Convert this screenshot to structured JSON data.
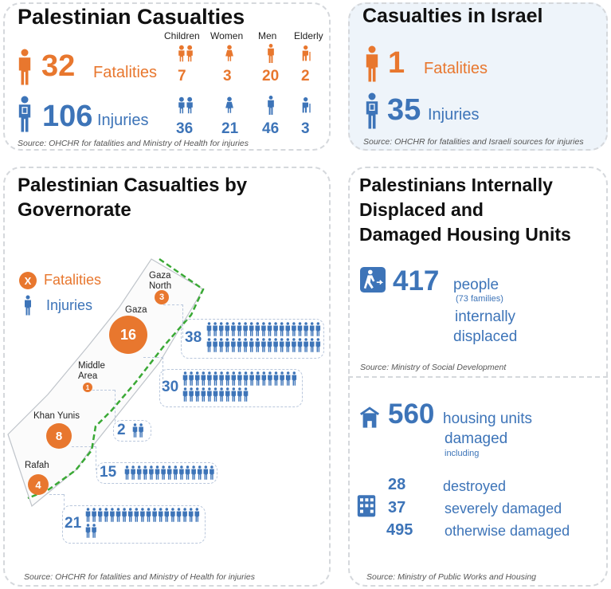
{
  "pal_cas": {
    "title": "Palestinian Casualties",
    "fatalities_value": "32",
    "fatalities_label": "Fatalities",
    "injuries_value": "106",
    "injuries_label": "Injuries",
    "headers": [
      "Children",
      "Women",
      "Men",
      "Elderly"
    ],
    "fatal_breakdown": [
      "7",
      "3",
      "20",
      "2"
    ],
    "injury_breakdown": [
      "36",
      "21",
      "46",
      "3"
    ],
    "source": "Source:  OHCHR for fatalities and  Ministry of Health for injuries"
  },
  "israel": {
    "title": "Casualties in Israel",
    "fatalities_value": "1",
    "fatalities_label": "Fatalities",
    "injuries_value": "35",
    "injuries_label": "Injuries",
    "source": "Source: OHCHR for fatalities and Israeli sources for injuries"
  },
  "gov": {
    "title_line1": "Palestinian Casualties by",
    "title_line2": "Governorate",
    "legend_fatal_symbol": "X",
    "legend_fatal_label": "Fatalities",
    "legend_injury_label": "Injuries",
    "governorates": [
      {
        "name_line1": "Gaza",
        "name_line2": "North",
        "fatalities": "3",
        "injuries": "38"
      },
      {
        "name_line1": "Gaza",
        "name_line2": "",
        "fatalities": "16",
        "injuries": "30"
      },
      {
        "name_line1": "Middle",
        "name_line2": "Area",
        "fatalities": "1",
        "injuries": "2"
      },
      {
        "name_line1": "Khan Yunis",
        "name_line2": "",
        "fatalities": "8",
        "injuries": "15"
      },
      {
        "name_line1": "Rafah",
        "name_line2": "",
        "fatalities": "4",
        "injuries": "21"
      }
    ],
    "source": "Source:  OHCHR for fatalities and  Ministry of Health for injuries"
  },
  "displaced": {
    "title_line1": "Palestinians Internally",
    "title_line2": "Displaced and",
    "title_line3": "Damaged Housing Units",
    "value": "417",
    "label1": "people",
    "families": "(73 families)",
    "label2": "internally",
    "label3": "displaced",
    "source": "Source: Ministry of Social Development"
  },
  "housing": {
    "value": "560",
    "label1": "housing units",
    "label2": "damaged",
    "label3": "including",
    "breakdown": [
      {
        "value": "28",
        "label": "destroyed"
      },
      {
        "value": "37",
        "label": "severely damaged"
      },
      {
        "value": "495",
        "label": "otherwise damaged"
      }
    ],
    "source": "Source: Ministry of Public Works and Housing"
  },
  "colors": {
    "orange": "#e8772e",
    "blue": "#3d74b8",
    "border": "#d5d8dc",
    "israel_bg": "#eef4fa",
    "green": "#3aa935"
  }
}
